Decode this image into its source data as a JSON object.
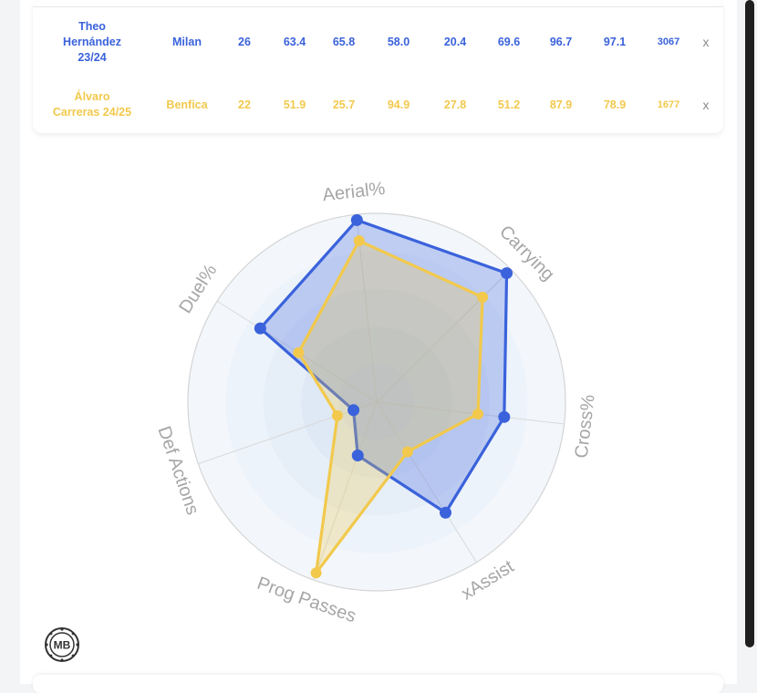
{
  "table": {
    "rows": [
      {
        "style": "blue",
        "name": "Theo\nHernández\n23/24",
        "team": "Milan",
        "age": "26",
        "stats": [
          "63.4",
          "65.8",
          "58.0",
          "20.4",
          "69.6",
          "96.7",
          "97.1"
        ],
        "minutes": "3067",
        "remove": "x"
      },
      {
        "style": "yellow",
        "name": "Álvaro\nCarreras 24/25",
        "team": "Benfica",
        "age": "22",
        "stats": [
          "51.9",
          "25.7",
          "94.9",
          "27.8",
          "51.2",
          "87.9",
          "78.9"
        ],
        "minutes": "1677",
        "remove": "x"
      }
    ]
  },
  "logo": {
    "text": "MB"
  },
  "colors": {
    "blue": "#3a62db",
    "yellow": "#f2c94c",
    "axis_label": "#a6a6a6",
    "grid": "#d4d4d4"
  },
  "chart_data": {
    "type": "radar",
    "axes": [
      "Aerial%",
      "Carrying",
      "Cross%",
      "xAssist",
      "Prog Passes",
      "Def Actions",
      "Duel%"
    ],
    "range": [
      0,
      100
    ],
    "grid": true,
    "series": [
      {
        "name": "Theo Hernández 23/24",
        "color": "#3a62db",
        "values": [
          97,
          97,
          68,
          69,
          30,
          13,
          73
        ]
      },
      {
        "name": "Álvaro Carreras 24/25",
        "color": "#f2c94c",
        "values": [
          86,
          79,
          54,
          31,
          96,
          22,
          49
        ]
      }
    ]
  }
}
